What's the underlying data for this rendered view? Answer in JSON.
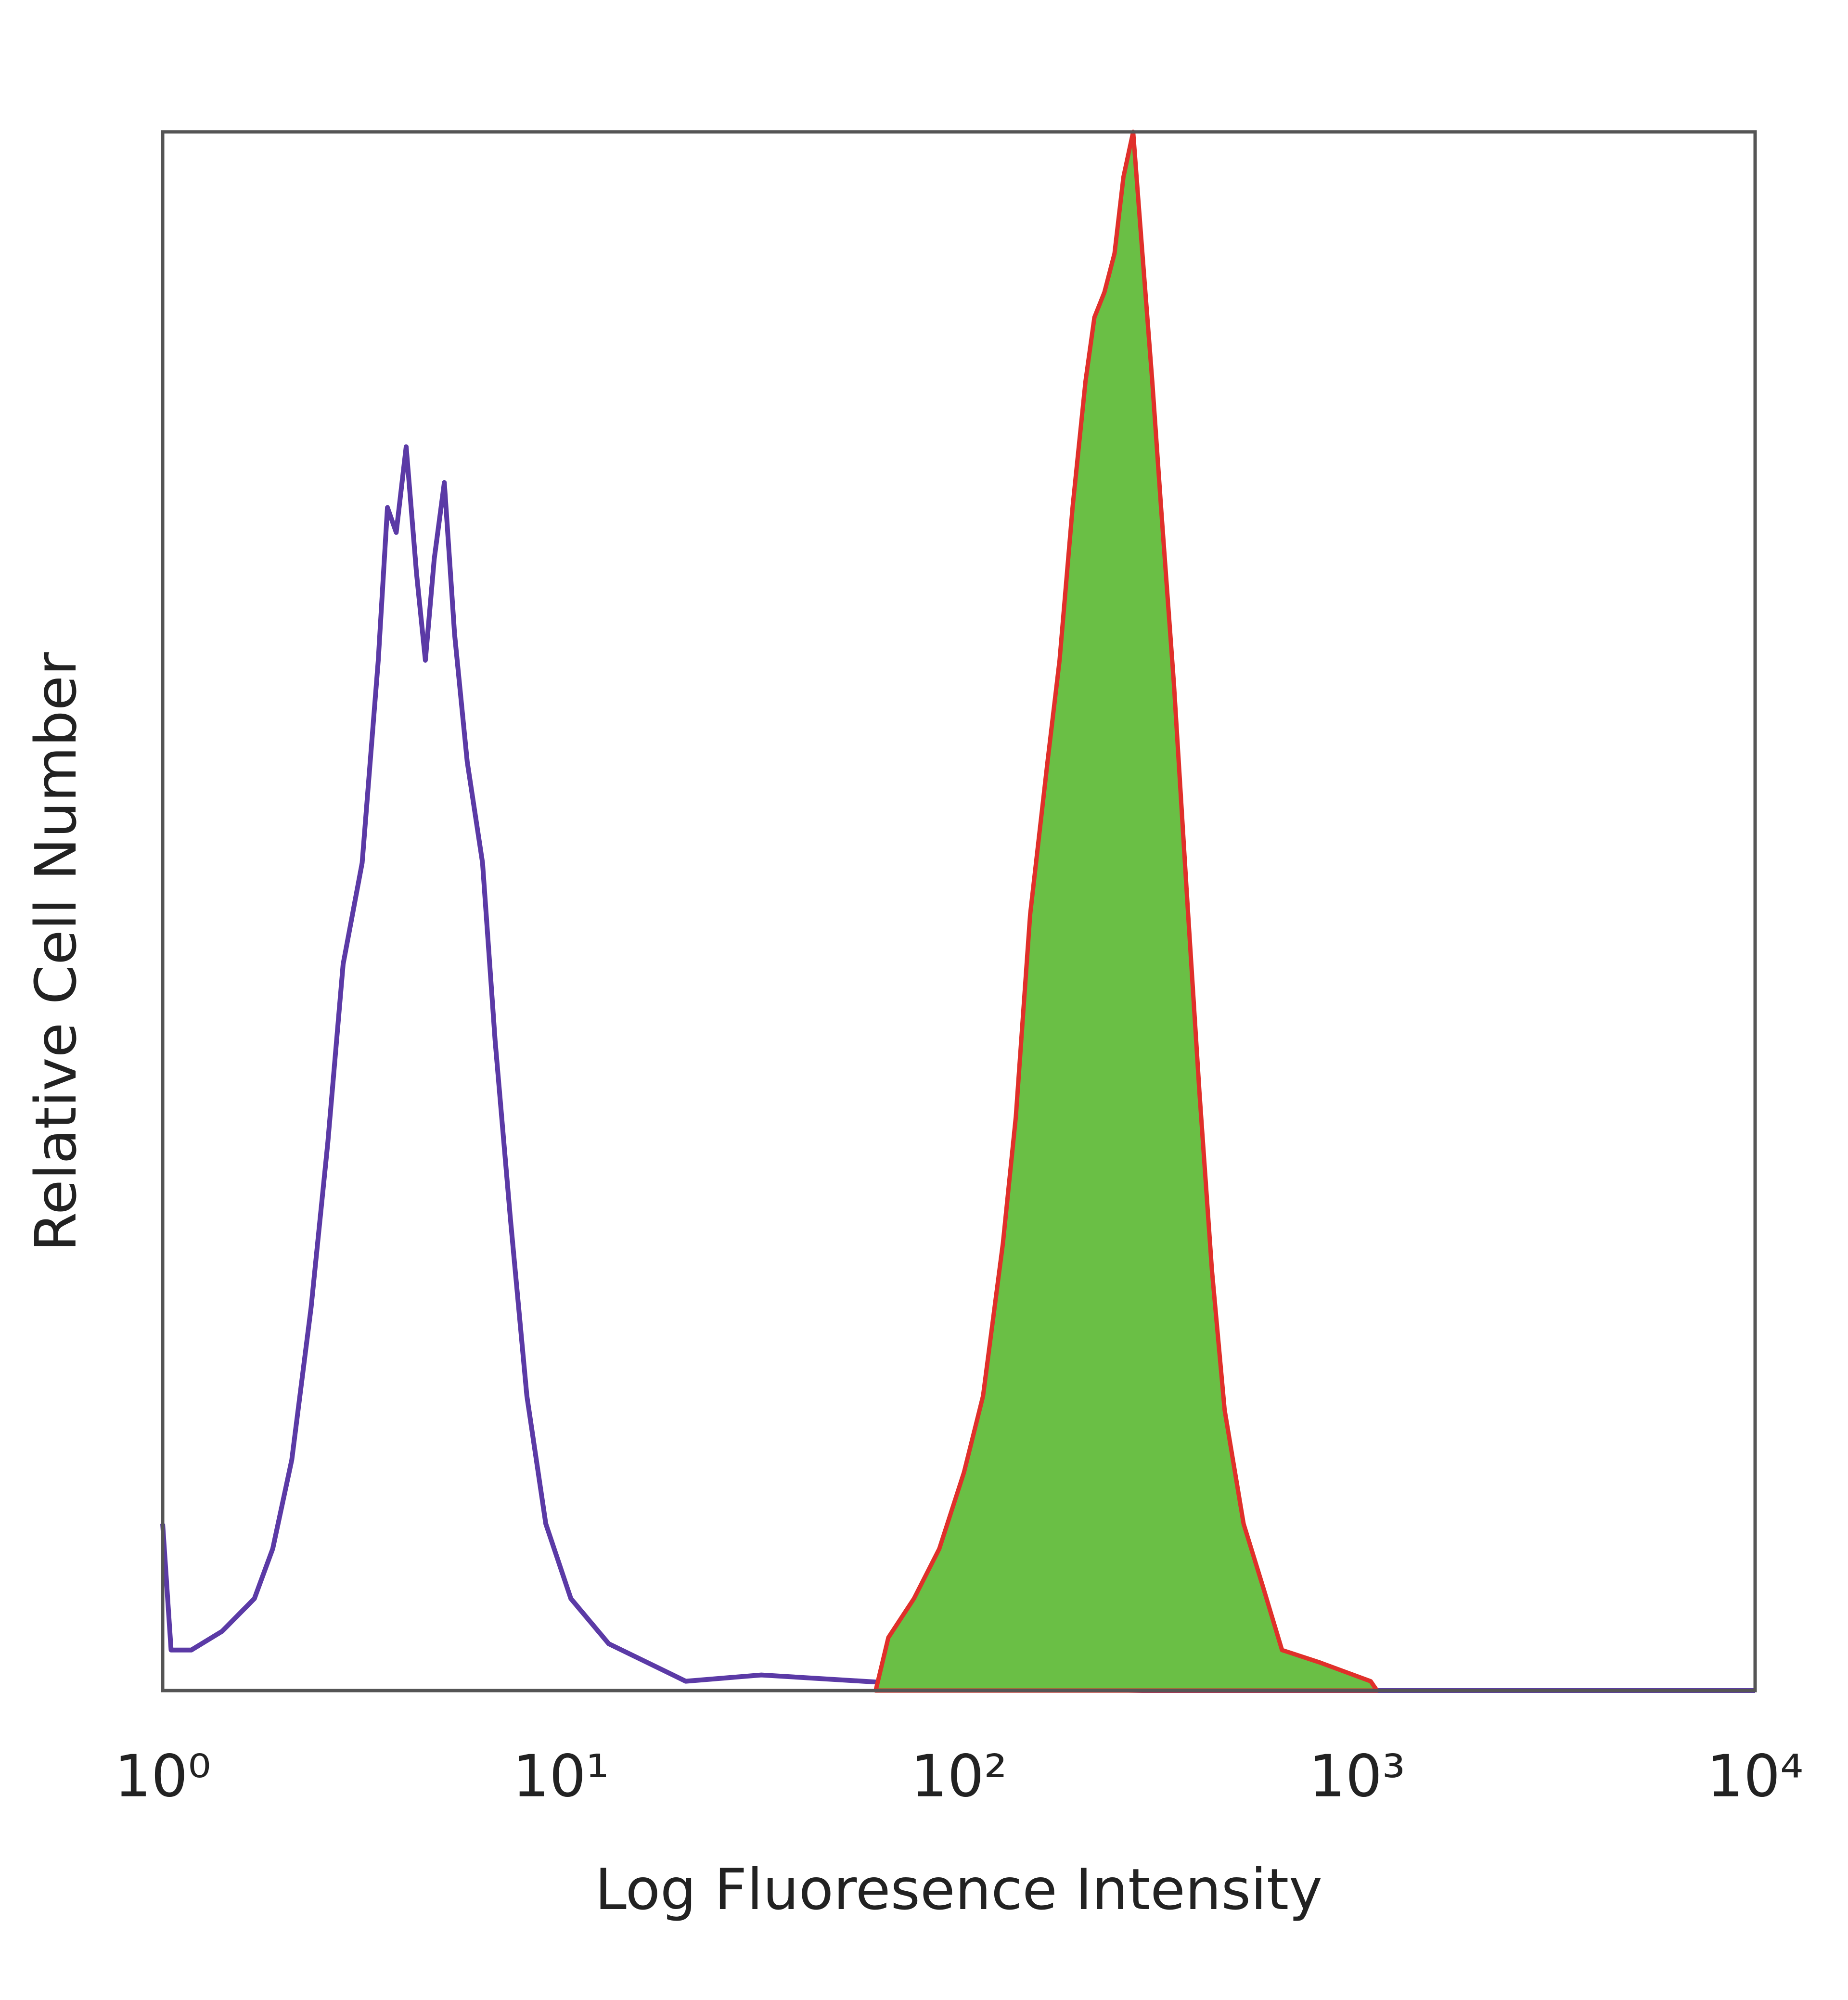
{
  "chart_data": {
    "type": "histogram-overlay",
    "x_label": "Log Fluoresence Intensity",
    "y_label": "Relative Cell Number",
    "xscale": "log",
    "xlim": [
      1,
      10000
    ],
    "ylim": [
      0,
      100
    ],
    "xticks": [
      {
        "value": 1,
        "label": "10⁰"
      },
      {
        "value": 10,
        "label": "10¹"
      },
      {
        "value": 100,
        "label": "10²"
      },
      {
        "value": 1000,
        "label": "10³"
      },
      {
        "value": 10000,
        "label": "10⁴"
      }
    ],
    "series": [
      {
        "color": "#5b3aa6",
        "fill": false,
        "x": [
          1,
          1.05,
          1.18,
          1.41,
          1.7,
          1.89,
          2.11,
          2.36,
          2.6,
          2.84,
          3.17,
          3.48,
          3.67,
          3.86,
          4.09,
          4.34,
          4.57,
          4.81,
          5.1,
          5.41,
          5.82,
          6.36,
          6.84,
          7.47,
          8.22,
          9.17,
          10.6,
          13.2,
          16.5,
          20.6,
          31.9,
          57.5,
          103,
          289,
          10000
        ],
        "values": [
          10.7,
          2.6,
          2.6,
          3.8,
          5.9,
          9.1,
          14.8,
          24.6,
          35.2,
          46.6,
          53.1,
          66.1,
          75.9,
          74.3,
          79.8,
          71.7,
          66.1,
          72.6,
          77.5,
          67.8,
          59.6,
          53.1,
          41.7,
          30.3,
          18.9,
          10.7,
          5.9,
          3.0,
          1.8,
          0.6,
          1.0,
          0.6,
          0.2,
          0,
          0
        ]
      },
      {
        "color": "#6abf45",
        "line_color": "#e0302a",
        "fill": true,
        "x": [
          61.8,
          66.5,
          77.1,
          89.3,
          103,
          115,
          129,
          139,
          151,
          167,
          179,
          193,
          208,
          219,
          232,
          246,
          259,
          274,
          289,
          306,
          322,
          347,
          373,
          402,
          432,
          465,
          519,
          580,
          648,
          807,
          1082,
          1123
        ],
        "values": [
          0,
          3.4,
          5.9,
          9.1,
          14.0,
          18.9,
          28.7,
          36.8,
          49.8,
          59.6,
          66.1,
          75.9,
          84.0,
          88.1,
          89.7,
          92.2,
          97.1,
          100,
          92.2,
          84.0,
          75.9,
          64.5,
          51.5,
          38.4,
          27.0,
          18.0,
          10.7,
          6.7,
          2.6,
          1.8,
          0.6,
          0
        ]
      }
    ]
  }
}
